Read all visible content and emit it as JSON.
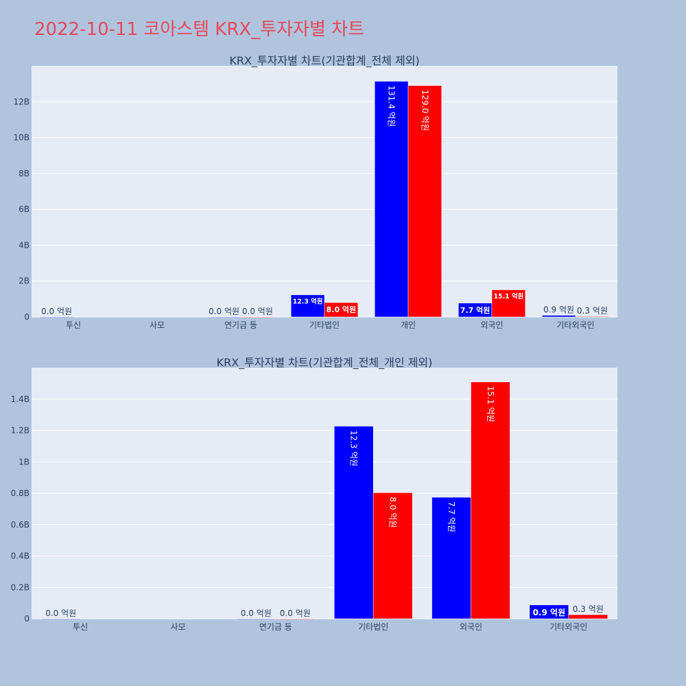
{
  "page": {
    "title": "2022-10-11 코아스템 KRX_투자자별 차트"
  },
  "colors": {
    "buy": "#0000ff",
    "sell": "#ff0000",
    "plot_bg": "#e5ecf6",
    "paper_bg": "#b0c4de",
    "title": "#e8485a"
  },
  "chart_data": [
    {
      "type": "bar",
      "title": "KRX_투자자별 차트(기관합계_전체 제외)",
      "categories": [
        "투신",
        "사모",
        "연기금 등",
        "기타법인",
        "개인",
        "외국인",
        "기타외국인"
      ],
      "series": [
        {
          "values": [
            0.0,
            null,
            0.0,
            1.23,
            13.14,
            0.77,
            0.09
          ],
          "labels": [
            "0.0 억원",
            "",
            "0.0 억원",
            "12.3 억원",
            "131.4 억원",
            "7.7 억원",
            "0.9 억원"
          ]
        },
        {
          "values": [
            null,
            null,
            0.0,
            0.8,
            12.9,
            1.51,
            0.03
          ],
          "labels": [
            "",
            "",
            "0.0 억원",
            "8.0 억원",
            "129.0 억원",
            "15.1 억원",
            "0.3 억원"
          ]
        }
      ],
      "yunit": "B",
      "ylim": [
        0,
        14
      ],
      "yticks": [
        0,
        2,
        4,
        6,
        8,
        10,
        12
      ],
      "yticklabels": [
        "0",
        "2B",
        "4B",
        "6B",
        "8B",
        "10B",
        "12B"
      ],
      "grid": true
    },
    {
      "type": "bar",
      "title": "KRX_투자자별 차트(기관합계_전체_개인 제외)",
      "categories": [
        "투신",
        "사모",
        "연기금 등",
        "기타법인",
        "외국인",
        "기타외국인"
      ],
      "series": [
        {
          "values": [
            0.0,
            null,
            0.0,
            1.227,
            0.774,
            0.088
          ],
          "labels": [
            "0.0 억원",
            "",
            "0.0 억원",
            "12.3 억원",
            "7.7 억원",
            "0.9 억원"
          ]
        },
        {
          "values": [
            null,
            null,
            0.0,
            0.803,
            1.509,
            0.026
          ],
          "labels": [
            "",
            "",
            "0.0 억원",
            "8.0 억원",
            "15.1 억원",
            "0.3 억원"
          ]
        }
      ],
      "yunit": "B",
      "ylim": [
        0,
        1.6
      ],
      "yticks": [
        0,
        0.2,
        0.4,
        0.6,
        0.8,
        1.0,
        1.2,
        1.4
      ],
      "yticklabels": [
        "0",
        "0.2B",
        "0.4B",
        "0.6B",
        "0.8B",
        "1B",
        "1.2B",
        "1.4B"
      ],
      "grid": true
    }
  ]
}
